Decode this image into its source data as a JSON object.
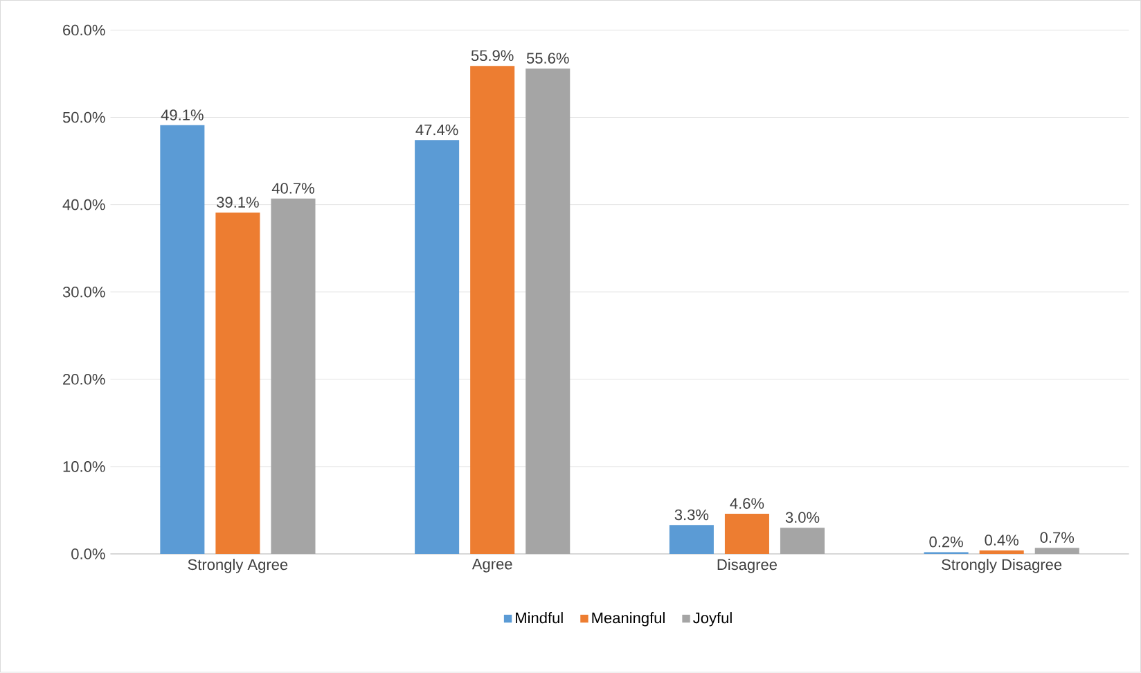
{
  "chart_data": {
    "type": "bar",
    "categories": [
      "Strongly Agree",
      "Agree",
      "Disagree",
      "Strongly Disagree"
    ],
    "series": [
      {
        "name": "Mindful",
        "color": "#5b9bd5",
        "values": [
          49.1,
          47.4,
          3.3,
          0.2
        ],
        "value_labels": [
          "49.1%",
          "47.4%",
          "3.3%",
          "0.2%"
        ]
      },
      {
        "name": "Meaningful",
        "color": "#ed7d31",
        "values": [
          39.1,
          55.9,
          4.6,
          0.4
        ],
        "value_labels": [
          "39.1%",
          "55.9%",
          "4.6%",
          "0.4%"
        ]
      },
      {
        "name": "Joyful",
        "color": "#a5a5a5",
        "values": [
          40.7,
          55.6,
          3.0,
          0.7
        ],
        "value_labels": [
          "40.7%",
          "55.6%",
          "3.0%",
          "0.7%"
        ]
      }
    ],
    "ylim": [
      0,
      60
    ],
    "yticks": [
      {
        "value": 0,
        "label": "0.0%"
      },
      {
        "value": 10,
        "label": "10.0%"
      },
      {
        "value": 20,
        "label": "20.0%"
      },
      {
        "value": 30,
        "label": "30.0%"
      },
      {
        "value": 40,
        "label": "40.0%"
      },
      {
        "value": 50,
        "label": "50.0%"
      },
      {
        "value": 60,
        "label": "60.0%"
      }
    ],
    "grid": "y",
    "legend": "bottom"
  }
}
